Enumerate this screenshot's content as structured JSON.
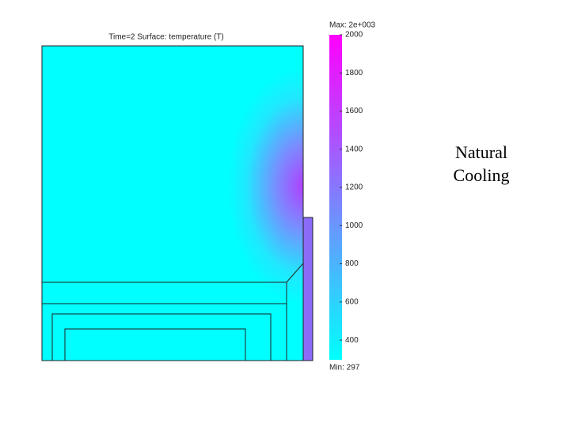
{
  "chart_data": {
    "type": "surface",
    "title": "Time=2  Surface: temperature (T)",
    "colorbar": {
      "lim": [
        297,
        2000
      ],
      "ticks": [
        400,
        600,
        800,
        1000,
        1200,
        1400,
        1600,
        1800,
        2000
      ],
      "max_label": "Max: 2e+003",
      "min_label": "Min: 297",
      "colors": [
        "#00ffff",
        "#ff00ff"
      ]
    },
    "annotation": "Natural Cooling"
  }
}
